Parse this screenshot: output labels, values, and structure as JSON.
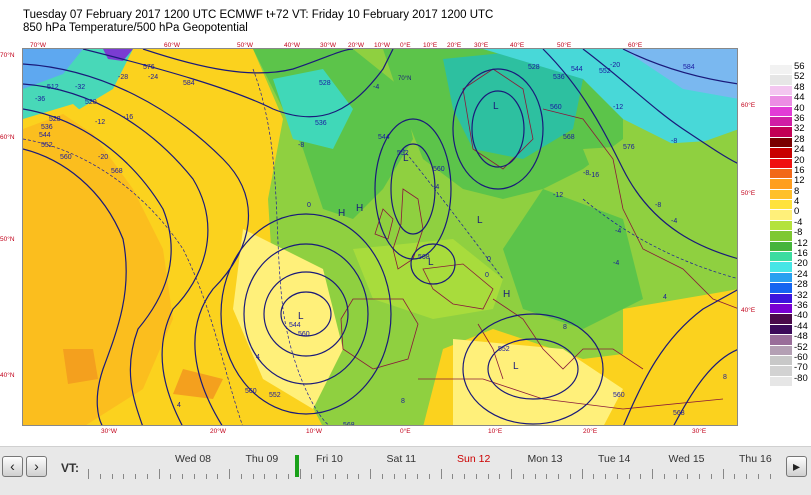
{
  "header": {
    "line1": "Tuesday 07 February 2017 1200 UTC  ECMWF  t+72  VT: Friday 10 February 2017 1200 UTC",
    "line2": "850 hPa Temperature/500 hPa Geopotential"
  },
  "map": {
    "top_lon_labels": [
      "70°W",
      "60°W",
      "50°W",
      "40°W",
      "30°W",
      "20°W",
      "10°W",
      "0°E",
      "10°E",
      "20°E",
      "30°E",
      "40°E",
      "50°E",
      "60°E"
    ],
    "bottom_lon_labels": [
      "30°W",
      "20°W",
      "10°W",
      "0°E",
      "10°E",
      "20°E",
      "30°E"
    ],
    "left_lat_labels": [
      "70°N",
      "60°N",
      "50°N",
      "40°N"
    ],
    "right_lat_labels": [
      "60°E",
      "50°E",
      "40°E"
    ],
    "inner_labels": [
      "70°N"
    ],
    "pressure_markers": [
      "H",
      "L",
      "L",
      "L",
      "H",
      "L",
      "L",
      "L",
      "H"
    ],
    "contour_labels": [
      "512",
      "520",
      "528",
      "536",
      "544",
      "552",
      "560",
      "568",
      "576",
      "584",
      "528",
      "536",
      "544",
      "552",
      "560",
      "568",
      "528",
      "536",
      "544",
      "552",
      "560",
      "568",
      "576",
      "584",
      "544",
      "552",
      "560",
      "568",
      "552",
      "560",
      "568",
      "560"
    ],
    "isotherm_labels": [
      "-36",
      "-32",
      "-28",
      "-24",
      "-20",
      "-16",
      "-12",
      "-8",
      "-4",
      "0",
      "4",
      "8",
      "-4",
      "-8",
      "-12",
      "-16",
      "-20",
      "-12",
      "-8",
      "-4",
      "0",
      "4",
      "8",
      "-4",
      "0",
      "4",
      "8",
      "-8",
      "-4"
    ]
  },
  "legend": {
    "labels": [
      "56",
      "52",
      "48",
      "44",
      "40",
      "36",
      "32",
      "28",
      "24",
      "20",
      "16",
      "12",
      "8",
      "4",
      "0",
      "-4",
      "-8",
      "-12",
      "-16",
      "-20",
      "-24",
      "-28",
      "-32",
      "-36",
      "-40",
      "-44",
      "-48",
      "-52",
      "-60",
      "-70",
      "-80"
    ],
    "colors": [
      "#f2f2f2",
      "#e6e6e6",
      "#f3c6f0",
      "#ec8ee4",
      "#e23cd6",
      "#d01ea4",
      "#c20055",
      "#7a0000",
      "#c80000",
      "#f01010",
      "#f26818",
      "#ff9e1e",
      "#ffc02a",
      "#ffe23c",
      "#fff07a",
      "#b4e23c",
      "#7ec832",
      "#46b43c",
      "#3cdca0",
      "#46e6e6",
      "#28a0f0",
      "#1464f0",
      "#3c14dc",
      "#7800d2",
      "#4a0a4a",
      "#3c0a5a",
      "#9a6e9a",
      "#b4a0b4",
      "#c8c8c8",
      "#d2d2d2",
      "#e6e6e6"
    ]
  },
  "timebar": {
    "vt_label": "VT:",
    "prev_label": "‹",
    "next_label": "›",
    "play_label": "▸",
    "days": [
      "Wed 08",
      "Thu 09",
      "Fri 10",
      "Sat 11",
      "Sun 12",
      "Mon 13",
      "Tue 14",
      "Wed 15",
      "Thu 16"
    ],
    "highlight_day": "Sun 12",
    "highlight_color": "#cc0000",
    "current_day": "Fri 10",
    "current_marker_color": "#1aa11a"
  }
}
